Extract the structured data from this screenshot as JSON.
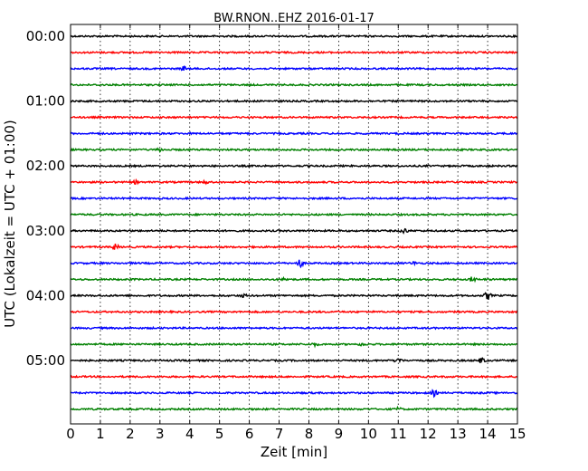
{
  "chart_data": {
    "type": "line",
    "title": "BW.RNON..EHZ 2016-01-17",
    "xlabel": "Zeit  [min]",
    "ylabel": "UTC (Lokalzeit = UTC + 01:00)",
    "xlim": [
      0,
      15
    ],
    "xticks": [
      0,
      1,
      2,
      3,
      4,
      5,
      6,
      7,
      8,
      9,
      10,
      11,
      12,
      13,
      14,
      15
    ],
    "yticks": [
      "00:00",
      "01:00",
      "02:00",
      "03:00",
      "04:00",
      "05:00"
    ],
    "grid": "vertical dotted",
    "colors": [
      "#000000",
      "#ff0000",
      "#0000ff",
      "#008000"
    ],
    "series": [
      {
        "start": "00:00",
        "color": "#000000",
        "events": []
      },
      {
        "start": "00:15",
        "color": "#ff0000",
        "events": []
      },
      {
        "start": "00:30",
        "color": "#0000ff",
        "events": [
          {
            "t": 3.8,
            "amp": 1.5
          }
        ]
      },
      {
        "start": "00:45",
        "color": "#008000",
        "events": []
      },
      {
        "start": "01:00",
        "color": "#000000",
        "events": []
      },
      {
        "start": "01:15",
        "color": "#ff0000",
        "events": []
      },
      {
        "start": "01:30",
        "color": "#0000ff",
        "events": []
      },
      {
        "start": "01:45",
        "color": "#008000",
        "events": [
          {
            "t": 3.0,
            "amp": 1
          }
        ]
      },
      {
        "start": "02:00",
        "color": "#000000",
        "events": []
      },
      {
        "start": "02:15",
        "color": "#ff0000",
        "events": [
          {
            "t": 2.2,
            "amp": 1
          },
          {
            "t": 4.5,
            "amp": 1
          }
        ]
      },
      {
        "start": "02:30",
        "color": "#0000ff",
        "events": []
      },
      {
        "start": "02:45",
        "color": "#008000",
        "events": []
      },
      {
        "start": "03:00",
        "color": "#000000",
        "events": [
          {
            "t": 11.2,
            "amp": 2
          }
        ]
      },
      {
        "start": "03:15",
        "color": "#ff0000",
        "events": [
          {
            "t": 1.5,
            "amp": 2
          }
        ]
      },
      {
        "start": "03:30",
        "color": "#0000ff",
        "events": [
          {
            "t": 7.7,
            "amp": 3
          },
          {
            "t": 11.5,
            "amp": 1
          }
        ]
      },
      {
        "start": "03:45",
        "color": "#008000",
        "events": [
          {
            "t": 7.2,
            "amp": 1
          },
          {
            "t": 13.5,
            "amp": 2
          }
        ]
      },
      {
        "start": "04:00",
        "color": "#000000",
        "events": [
          {
            "t": 14.0,
            "amp": 3
          },
          {
            "t": 5.8,
            "amp": 1
          }
        ]
      },
      {
        "start": "04:15",
        "color": "#ff0000",
        "events": []
      },
      {
        "start": "04:30",
        "color": "#0000ff",
        "events": []
      },
      {
        "start": "04:45",
        "color": "#008000",
        "events": [
          {
            "t": 8.2,
            "amp": 1
          },
          {
            "t": 9.8,
            "amp": 1
          }
        ]
      },
      {
        "start": "05:00",
        "color": "#000000",
        "events": [
          {
            "t": 11.0,
            "amp": 2
          },
          {
            "t": 13.8,
            "amp": 2
          }
        ]
      },
      {
        "start": "05:15",
        "color": "#ff0000",
        "events": []
      },
      {
        "start": "05:30",
        "color": "#0000ff",
        "events": [
          {
            "t": 12.2,
            "amp": 2
          }
        ]
      },
      {
        "start": "05:45",
        "color": "#008000",
        "events": [
          {
            "t": 11.0,
            "amp": 1
          }
        ]
      }
    ]
  }
}
